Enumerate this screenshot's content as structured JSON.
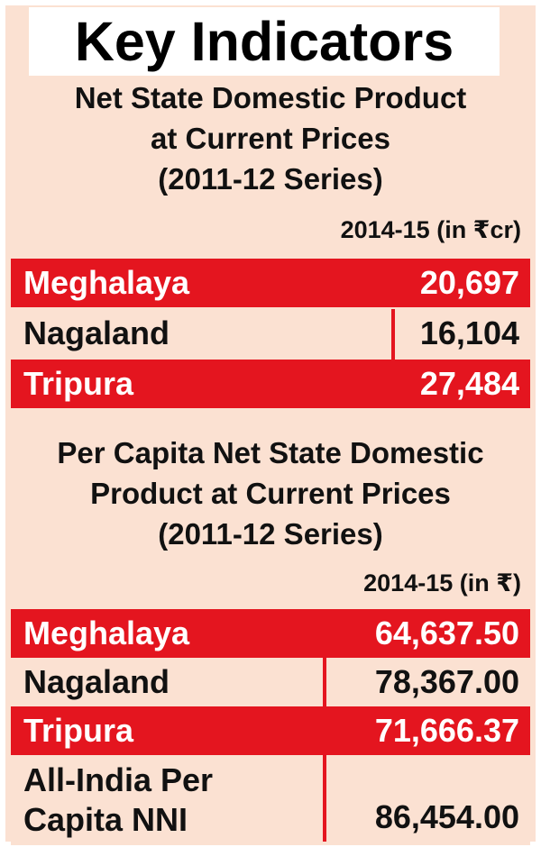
{
  "title": "Key Indicators",
  "section1": {
    "heading_line1": "Net State Domestic Product",
    "heading_line2": "at Current Prices",
    "heading_line3": "(2011-12 Series)",
    "unit": "2014-15 (in ₹cr)",
    "rows": [
      {
        "name": "Meghalaya",
        "value": "20,697"
      },
      {
        "name": "Nagaland",
        "value": "16,104"
      },
      {
        "name": "Tripura",
        "value": "27,484"
      }
    ]
  },
  "section2": {
    "heading_line1": "Per Capita Net State Domestic",
    "heading_line2": "Product at Current Prices",
    "heading_line3": "(2011-12 Series)",
    "unit": "2014-15 (in ₹)",
    "rows": [
      {
        "name": "Meghalaya",
        "value": "64,637.50"
      },
      {
        "name": "Nagaland",
        "value": "78,367.00"
      },
      {
        "name": "Tripura",
        "value": "71,666.37"
      }
    ],
    "all_india": {
      "name_line1": "All-India Per",
      "name_line2": "Capita NNI",
      "value": "86,454.00"
    }
  },
  "colors": {
    "accent_red": "#e4151f",
    "background": "#fbe1d2"
  }
}
